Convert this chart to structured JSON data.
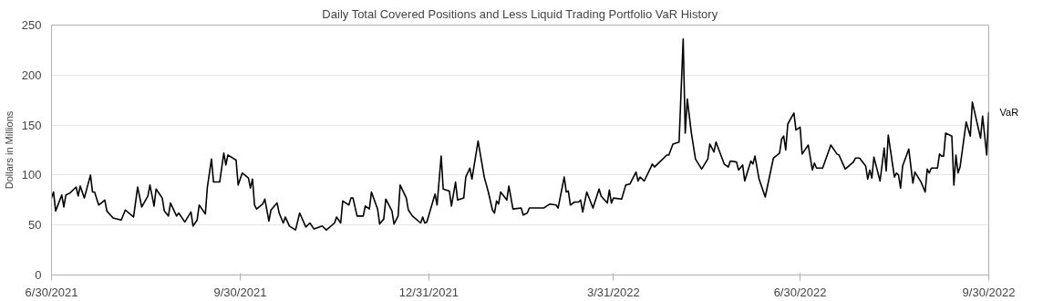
{
  "chart_data": {
    "type": "line",
    "title": "Daily Total Covered Positions and Less Liquid Trading Portfolio VaR History",
    "ylabel": "Dollars in Millions",
    "x": [
      "2021-06-30",
      "2021-07-01",
      "2021-07-02",
      "2021-07-05",
      "2021-07-06",
      "2021-07-07",
      "2021-07-09",
      "2021-07-12",
      "2021-07-13",
      "2021-07-14",
      "2021-07-16",
      "2021-07-19",
      "2021-07-20",
      "2021-07-21",
      "2021-07-23",
      "2021-07-26",
      "2021-07-27",
      "2021-07-30",
      "2021-08-03",
      "2021-08-05",
      "2021-08-09",
      "2021-08-11",
      "2021-08-13",
      "2021-08-16",
      "2021-08-17",
      "2021-08-19",
      "2021-08-20",
      "2021-08-23",
      "2021-08-24",
      "2021-08-26",
      "2021-08-27",
      "2021-08-30",
      "2021-08-31",
      "2021-09-03",
      "2021-09-06",
      "2021-09-07",
      "2021-09-09",
      "2021-09-10",
      "2021-09-13",
      "2021-09-14",
      "2021-09-16",
      "2021-09-17",
      "2021-09-20",
      "2021-09-22",
      "2021-09-23",
      "2021-09-24",
      "2021-09-28",
      "2021-09-29",
      "2021-10-01",
      "2021-10-04",
      "2021-10-05",
      "2021-10-06",
      "2021-10-07",
      "2021-10-08",
      "2021-10-11",
      "2021-10-12",
      "2021-10-14",
      "2021-10-15",
      "2021-10-18",
      "2021-10-19",
      "2021-10-21",
      "2021-10-22",
      "2021-10-24",
      "2021-10-27",
      "2021-10-29",
      "2021-11-01",
      "2021-11-03",
      "2021-11-05",
      "2021-11-09",
      "2021-11-11",
      "2021-11-15",
      "2021-11-16",
      "2021-11-18",
      "2021-11-19",
      "2021-11-22",
      "2021-11-23",
      "2021-11-24",
      "2021-11-26",
      "2021-11-29",
      "2021-11-30",
      "2021-12-02",
      "2021-12-03",
      "2021-12-06",
      "2021-12-07",
      "2021-12-09",
      "2021-12-10",
      "2021-12-13",
      "2021-12-14",
      "2021-12-16",
      "2021-12-17",
      "2021-12-20",
      "2021-12-21",
      "2021-12-23",
      "2021-12-27",
      "2021-12-28",
      "2021-12-29",
      "2021-12-30",
      "2022-01-03",
      "2022-01-04",
      "2022-01-06",
      "2022-01-07",
      "2022-01-10",
      "2022-01-11",
      "2022-01-13",
      "2022-01-14",
      "2022-01-17",
      "2022-01-18",
      "2022-01-20",
      "2022-01-21",
      "2022-01-24",
      "2022-01-27",
      "2022-01-29",
      "2022-01-31",
      "2022-02-01",
      "2022-02-02",
      "2022-02-03",
      "2022-02-04",
      "2022-02-07",
      "2022-02-08",
      "2022-02-10",
      "2022-02-14",
      "2022-02-15",
      "2022-02-17",
      "2022-02-18",
      "2022-02-21",
      "2022-02-25",
      "2022-02-28",
      "2022-03-03",
      "2022-03-04",
      "2022-03-07",
      "2022-03-08",
      "2022-03-09",
      "2022-03-10",
      "2022-03-12",
      "2022-03-14",
      "2022-03-15",
      "2022-03-16",
      "2022-03-18",
      "2022-03-21",
      "2022-03-24",
      "2022-03-25",
      "2022-03-28",
      "2022-03-29",
      "2022-03-30",
      "2022-03-31",
      "2022-04-04",
      "2022-04-06",
      "2022-04-08",
      "2022-04-11",
      "2022-04-12",
      "2022-04-13",
      "2022-04-15",
      "2022-04-19",
      "2022-04-20",
      "2022-04-23",
      "2022-04-26",
      "2022-04-27",
      "2022-04-29",
      "2022-05-02",
      "2022-05-04",
      "2022-05-05",
      "2022-05-06",
      "2022-05-08",
      "2022-05-10",
      "2022-05-13",
      "2022-05-16",
      "2022-05-17",
      "2022-05-19",
      "2022-05-20",
      "2022-05-24",
      "2022-05-26",
      "2022-05-27",
      "2022-05-30",
      "2022-05-31",
      "2022-06-02",
      "2022-06-03",
      "2022-06-06",
      "2022-06-07",
      "2022-06-08",
      "2022-06-10",
      "2022-06-13",
      "2022-06-17",
      "2022-06-20",
      "2022-06-21",
      "2022-06-22",
      "2022-06-23",
      "2022-06-24",
      "2022-06-27",
      "2022-06-28",
      "2022-06-30",
      "2022-07-01",
      "2022-07-04",
      "2022-07-06",
      "2022-07-07",
      "2022-07-08",
      "2022-07-11",
      "2022-07-15",
      "2022-07-18",
      "2022-07-19",
      "2022-07-22",
      "2022-07-26",
      "2022-07-27",
      "2022-07-29",
      "2022-08-01",
      "2022-08-02",
      "2022-08-03",
      "2022-08-04",
      "2022-08-05",
      "2022-08-08",
      "2022-08-10",
      "2022-08-11",
      "2022-08-12",
      "2022-08-15",
      "2022-08-16",
      "2022-08-17",
      "2022-08-18",
      "2022-08-19",
      "2022-08-22",
      "2022-08-24",
      "2022-08-25",
      "2022-08-28",
      "2022-08-30",
      "2022-08-31",
      "2022-09-01",
      "2022-09-02",
      "2022-09-05",
      "2022-09-06",
      "2022-09-07",
      "2022-09-08",
      "2022-09-09",
      "2022-09-12",
      "2022-09-13",
      "2022-09-14",
      "2022-09-15",
      "2022-09-16",
      "2022-09-19",
      "2022-09-21",
      "2022-09-22",
      "2022-09-26",
      "2022-09-27",
      "2022-09-29",
      "2022-09-30"
    ],
    "series": [
      {
        "name": "VaR",
        "color": "#000000",
        "values": [
          77,
          83,
          64,
          80,
          68,
          80,
          82,
          88,
          79,
          89,
          77,
          100,
          83,
          83,
          70,
          75,
          64,
          57,
          55,
          65,
          58,
          88,
          68,
          79,
          90,
          69,
          86,
          77,
          64,
          59,
          72,
          59,
          62,
          53,
          63,
          49,
          55,
          70,
          61,
          88,
          116,
          93,
          93,
          122,
          110,
          120,
          115,
          90,
          102,
          97,
          87,
          96,
          70,
          66,
          71,
          76,
          54,
          65,
          72,
          62,
          52,
          58,
          49,
          45,
          62,
          48,
          52,
          46,
          49,
          45,
          52,
          58,
          52,
          74,
          70,
          77,
          77,
          59,
          59,
          69,
          66,
          83,
          66,
          51,
          56,
          76,
          64,
          51,
          59,
          90,
          77,
          65,
          59,
          52,
          58,
          52,
          53,
          81,
          70,
          119,
          86,
          84,
          69,
          93,
          75,
          77,
          98,
          107,
          96,
          134,
          98,
          83,
          65,
          62,
          74,
          71,
          83,
          75,
          89,
          66,
          67,
          60,
          62,
          67,
          67,
          67,
          71,
          70,
          67,
          98,
          83,
          84,
          70,
          73,
          73,
          75,
          63,
          83,
          67,
          86,
          79,
          72,
          85,
          72,
          77,
          76,
          90,
          91,
          103,
          94,
          98,
          94,
          111,
          108,
          114,
          120,
          120,
          131,
          133,
          236,
          142,
          176,
          142,
          116,
          106,
          116,
          131,
          123,
          133,
          111,
          108,
          114,
          113,
          105,
          110,
          94,
          114,
          111,
          119,
          96,
          78,
          117,
          122,
          136,
          139,
          125,
          151,
          162,
          145,
          148,
          121,
          130,
          105,
          112,
          107,
          107,
          130,
          121,
          120,
          106,
          113,
          117,
          117,
          109,
          96,
          105,
          97,
          118,
          94,
          127,
          104,
          140,
          98,
          102,
          100,
          87,
          109,
          126,
          92,
          103,
          93,
          83,
          106,
          102,
          107,
          107,
          121,
          119,
          119,
          142,
          139,
          90,
          120,
          102,
          108,
          153,
          139,
          173,
          137,
          159,
          120,
          163
        ]
      }
    ],
    "xlim": [
      "2021-06-30",
      "2022-09-30"
    ],
    "xticks": [
      {
        "value": "2021-06-30",
        "label": "6/30/2021"
      },
      {
        "value": "2021-09-30",
        "label": "9/30/2021"
      },
      {
        "value": "2021-12-31",
        "label": "12/31/2021"
      },
      {
        "value": "2022-03-31",
        "label": "3/31/2022"
      },
      {
        "value": "2022-06-30",
        "label": "6/30/2022"
      },
      {
        "value": "2022-09-30",
        "label": "9/30/2022"
      }
    ],
    "ylim": [
      0,
      250
    ],
    "yticks": [
      0,
      50,
      100,
      150,
      200,
      250
    ],
    "grid": "y",
    "legend": false,
    "marker": "none",
    "line_style": "solid"
  }
}
